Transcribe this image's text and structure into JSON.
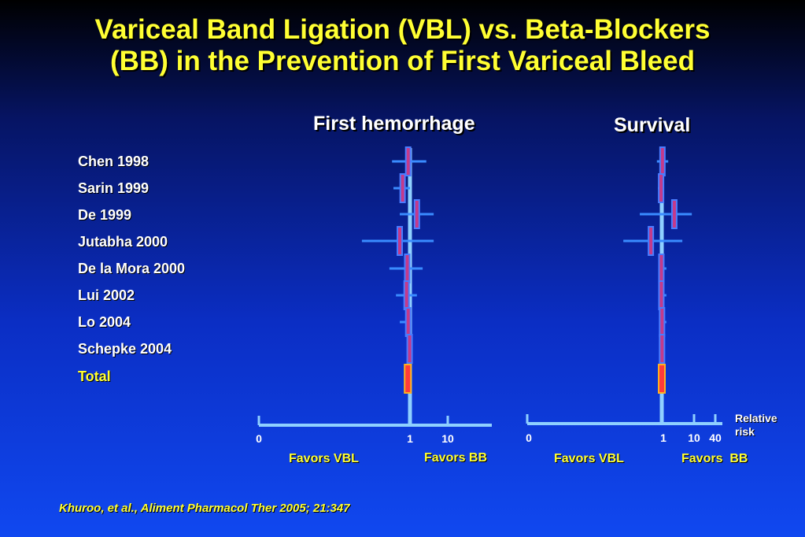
{
  "title_line1": "Variceal Band Ligation (VBL) vs. Beta-Blockers",
  "title_line2": "(BB) in the Prevention of First Variceal Bleed",
  "studies": [
    "Chen 1998",
    "Sarin 1999",
    "De 1999",
    "Jutabha 2000",
    "De la Mora 2000",
    "Lui 2002",
    "Lo 2004",
    "Schepke 2004",
    "Total"
  ],
  "citation": "Khuroo, et al., Aliment Pharmacol Ther 2005; 21:347",
  "relative_risk_label": [
    "Relative",
    "risk"
  ],
  "colors": {
    "title": "#ffff33",
    "ci_line": "#3a8cff",
    "reference_line": "#8fd0ff",
    "point_fill": "#c43a8a",
    "point_border": "#4a7cff",
    "total_fill": "#ff3b3b",
    "total_border": "#ffb020"
  },
  "chart_data": [
    {
      "type": "forest",
      "title": "First hemorrhage",
      "scale": "log",
      "tick_labels": [
        "0",
        "1",
        "10"
      ],
      "favors_left": "Favors VBL",
      "favors_right": "Favors BB",
      "rows": [
        {
          "study": "Chen 1998",
          "estimate": 0.9,
          "lower": 0.35,
          "upper": 2.6
        },
        {
          "study": "Sarin 1999",
          "estimate": 0.65,
          "lower": 0.38,
          "upper": 1.0
        },
        {
          "study": "De 1999",
          "estimate": 1.5,
          "lower": 0.55,
          "upper": 4.0
        },
        {
          "study": "Jutabha 2000",
          "estimate": 0.55,
          "lower": 0.06,
          "upper": 4.0
        },
        {
          "study": "De la Mora 2000",
          "estimate": 0.85,
          "lower": 0.3,
          "upper": 2.1
        },
        {
          "study": "Lui 2002",
          "estimate": 0.82,
          "lower": 0.44,
          "upper": 1.5
        },
        {
          "study": "Lo 2004",
          "estimate": 0.9,
          "lower": 0.55,
          "upper": 1.05
        },
        {
          "study": "Schepke 2004",
          "estimate": 0.98,
          "lower": 0.85,
          "upper": 1.1
        },
        {
          "study": "Total",
          "estimate": 0.88,
          "lower": 0.8,
          "upper": 0.97
        }
      ]
    },
    {
      "type": "forest",
      "title": "Survival",
      "scale": "log",
      "tick_labels": [
        "0",
        "1",
        "10",
        "40"
      ],
      "favors_left": "Favors VBL",
      "favors_right": "Favors  BB",
      "rows": [
        {
          "study": "Chen 1998",
          "estimate": 1.05,
          "lower": 0.7,
          "upper": 1.6
        },
        {
          "study": "Sarin 1999",
          "estimate": 0.95,
          "lower": 0.75,
          "upper": 1.1
        },
        {
          "study": "De 1999",
          "estimate": 2.5,
          "lower": 0.2,
          "upper": 9.0
        },
        {
          "study": "Jutabha 2000",
          "estimate": 0.45,
          "lower": 0.06,
          "upper": 4.5
        },
        {
          "study": "De la Mora 2000",
          "estimate": 0.97,
          "lower": 0.85,
          "upper": 1.4
        },
        {
          "study": "Lui 2002",
          "estimate": 0.97,
          "lower": 0.85,
          "upper": 1.4
        },
        {
          "study": "Lo 2004",
          "estimate": 1.02,
          "lower": 0.85,
          "upper": 1.4
        },
        {
          "study": "Schepke 2004",
          "estimate": 1.02,
          "lower": 0.95,
          "upper": 1.1
        },
        {
          "study": "Total",
          "estimate": 1.0,
          "lower": 0.9,
          "upper": 1.12
        }
      ]
    }
  ]
}
